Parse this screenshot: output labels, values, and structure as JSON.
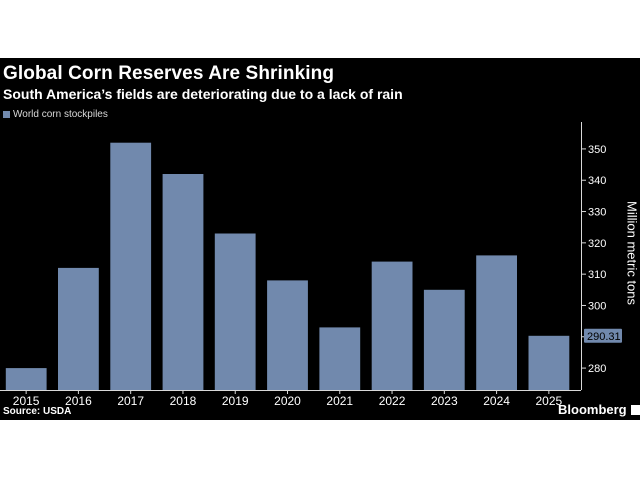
{
  "header": {
    "title": "Global Corn Reserves Are Shrinking",
    "subtitle": "South America’s fields are deteriorating due to a lack of rain"
  },
  "footer": {
    "source": "Source: USDA",
    "brand": "Bloomberg"
  },
  "colors": {
    "background": "#000000",
    "bar": "#7189ad",
    "text": "#ffffff",
    "tick": "#d9d9d9",
    "last_value_box": "#7189ad"
  },
  "chart_data": {
    "type": "bar",
    "title": "Global Corn Reserves Are Shrinking",
    "subtitle": "South America’s fields are deteriorating due to a lack of rain",
    "categories": [
      "2015",
      "2016",
      "2017",
      "2018",
      "2019",
      "2020",
      "2021",
      "2022",
      "2023",
      "2024",
      "2025"
    ],
    "series": [
      {
        "name": "World corn stockpiles",
        "values": [
          280,
          312,
          352,
          342,
          323,
          308,
          293,
          314,
          305,
          316,
          290.31
        ]
      }
    ],
    "ylabel": "Million metric tons",
    "xlabel": "",
    "ylim": [
      273,
      357
    ],
    "yticks": [
      280,
      290,
      300,
      310,
      320,
      330,
      340,
      350
    ],
    "y_axis_side": "right",
    "last_value_label": "290.31",
    "grid": false,
    "legend": "top-left"
  }
}
